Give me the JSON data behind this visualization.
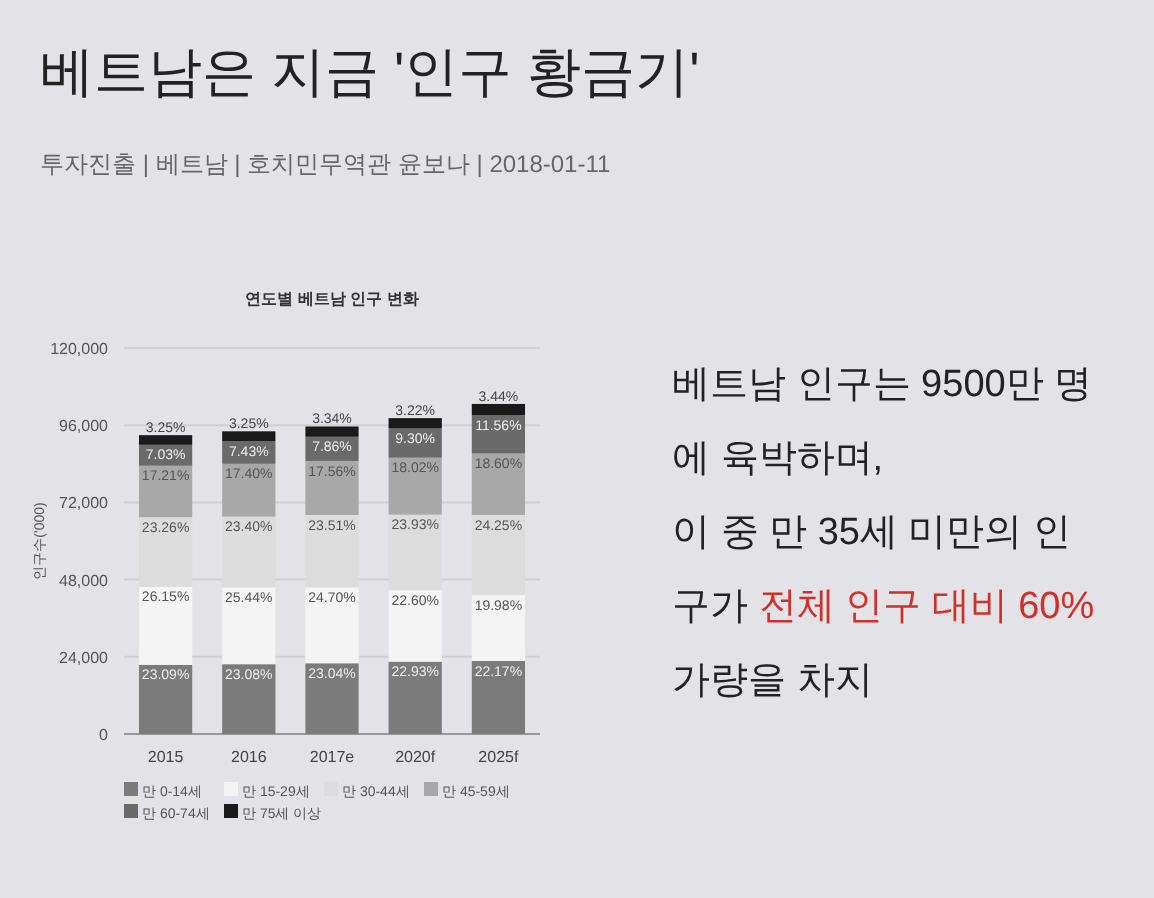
{
  "chart_data": {
    "type": "bar",
    "stacked": true,
    "title": "연도별 베트남 인구 변화",
    "subtitle": "투자진출 | 베트남 | 호치민무역관 윤보나 | 2018-01-11",
    "ylabel": "인구수('000)",
    "annotations": [
      "베트남은 지금 '인구 황금기'",
      "베트남 인구는 9500만 명",
      "에 육박하며,",
      "이 중 만 35세 미만의 인",
      "구가 ",
      "전체 인구 대비 60%",
      "가량을 차지",
      {
        "text": "23.09%",
        "x": "2015",
        "y": 18500
      },
      {
        "text": "23.08%",
        "x": "2016",
        "y": 18700
      },
      {
        "text": "23.04%",
        "x": "2017e",
        "y": 19000
      },
      {
        "text": "22.93%",
        "x": "2020f",
        "y": 19500
      },
      {
        "text": "22.17%",
        "x": "2025f",
        "y": 19700
      },
      {
        "text": "26.15%",
        "x": "2015",
        "y": 42800
      },
      {
        "text": "25.44%",
        "x": "2016",
        "y": 42600
      },
      {
        "text": "24.70%",
        "x": "2017e",
        "y": 42600
      },
      {
        "text": "22.60%",
        "x": "2020f",
        "y": 41700
      },
      {
        "text": "19.98%",
        "x": "2025f",
        "y": 40200
      },
      {
        "text": "23.26%",
        "x": "2015",
        "y": 64400
      },
      {
        "text": "23.40%",
        "x": "2016",
        "y": 64600
      },
      {
        "text": "23.51%",
        "x": "2017e",
        "y": 65100
      },
      {
        "text": "23.93%",
        "x": "2020f",
        "y": 65200
      },
      {
        "text": "24.25%",
        "x": "2025f",
        "y": 65100
      },
      {
        "text": "17.21%",
        "x": "2015",
        "y": 80400
      },
      {
        "text": "17.40%",
        "x": "2016",
        "y": 81000
      },
      {
        "text": "17.56%",
        "x": "2017e",
        "y": 81900
      },
      {
        "text": "18.02%",
        "x": "2020f",
        "y": 82900
      },
      {
        "text": "18.60%",
        "x": "2025f",
        "y": 84200
      },
      {
        "text": "7.03%",
        "x": "2015",
        "y": 86900
      },
      {
        "text": "7.43%",
        "x": "2016",
        "y": 88000
      },
      {
        "text": "7.86%",
        "x": "2017e",
        "y": 89400
      },
      {
        "text": "9.30%",
        "x": "2020f",
        "y": 92000
      },
      {
        "text": "11.56%",
        "x": "2025f",
        "y": 96100
      },
      {
        "text": "3.25%",
        "x": "2015",
        "y": 95400
      },
      {
        "text": "3.25%",
        "x": "2016",
        "y": 96600
      },
      {
        "text": "3.34%",
        "x": "2017e",
        "y": 98100
      },
      {
        "text": "3.22%",
        "x": "2020f",
        "y": 100700
      },
      {
        "text": "3.44%",
        "x": "2025f",
        "y": 105100
      }
    ],
    "categories": [
      "2015",
      "2016",
      "2017e",
      "2020f",
      "2025f"
    ],
    "ylim": [
      0,
      120000
    ],
    "yticks": [
      {
        "value": 0,
        "label": "0"
      },
      {
        "value": 24000,
        "label": "24,000"
      },
      {
        "value": 48000,
        "label": "48,000"
      },
      {
        "value": 72000,
        "label": "72,000"
      },
      {
        "value": 96000,
        "label": "96,000"
      },
      {
        "value": 120000,
        "label": "120,000"
      }
    ],
    "grid": "y",
    "legend": "bottom",
    "series": [
      {
        "name": "만 0-14세",
        "color": "#7b7b7b",
        "values": [
          21500,
          21700,
          22000,
          22500,
          22700
        ]
      },
      {
        "name": "만 15-29세",
        "color": "#f4f4f4",
        "values": [
          24300,
          23900,
          23600,
          22200,
          20500
        ]
      },
      {
        "name": "만 30-44세",
        "color": "#dcdcdc",
        "values": [
          21600,
          22000,
          22500,
          23500,
          24900
        ]
      },
      {
        "name": "만 45-59세",
        "color": "#a8a8a8",
        "values": [
          16000,
          16400,
          16800,
          17700,
          19100
        ]
      },
      {
        "name": "만 60-74세",
        "color": "#6a6a6a",
        "values": [
          6500,
          7000,
          7500,
          9100,
          11900
        ]
      },
      {
        "name": "만 75세 이상",
        "color": "#1a1a1a",
        "values": [
          3000,
          3100,
          3200,
          3200,
          3500
        ]
      }
    ]
  }
}
